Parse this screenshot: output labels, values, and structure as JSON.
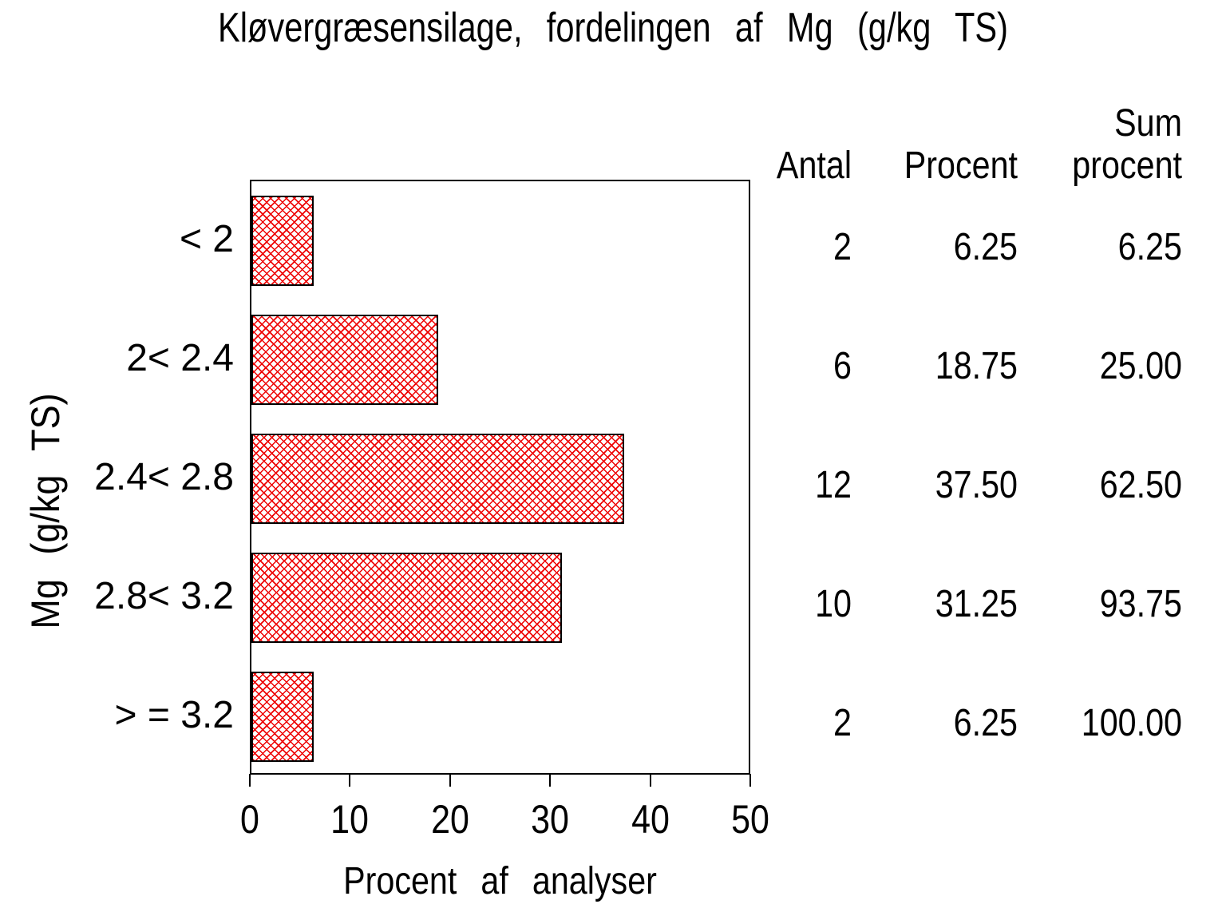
{
  "chart_data": {
    "type": "bar",
    "orientation": "horizontal",
    "title": "Kløvergræsensilage, fordelingen af Mg (g/kg TS)",
    "xlabel": "Procent af analyser",
    "ylabel": "Mg (g/kg TS)",
    "categories": [
      "< 2",
      "2< 2.4",
      "2.4< 2.8",
      "2.8< 3.2",
      "> = 3.2"
    ],
    "values": [
      6.25,
      18.75,
      37.5,
      31.25,
      6.25
    ],
    "xlim": [
      0,
      50
    ],
    "xticks": [
      "0",
      "10",
      "20",
      "30",
      "40",
      "50"
    ],
    "grid": false,
    "legend": "none",
    "bar_hatch_color": "#ee0000",
    "bar_border_color": "#000000",
    "table": {
      "headers": {
        "antal": "Antal",
        "procent": "Procent",
        "sum_line1": "Sum",
        "sum_line2": "procent"
      },
      "rows": [
        {
          "antal": "2",
          "procent": "6.25",
          "sum_procent": "6.25"
        },
        {
          "antal": "6",
          "procent": "18.75",
          "sum_procent": "25.00"
        },
        {
          "antal": "12",
          "procent": "37.50",
          "sum_procent": "62.50"
        },
        {
          "antal": "10",
          "procent": "31.25",
          "sum_procent": "93.75"
        },
        {
          "antal": "2",
          "procent": "6.25",
          "sum_procent": "100.00"
        }
      ]
    }
  }
}
